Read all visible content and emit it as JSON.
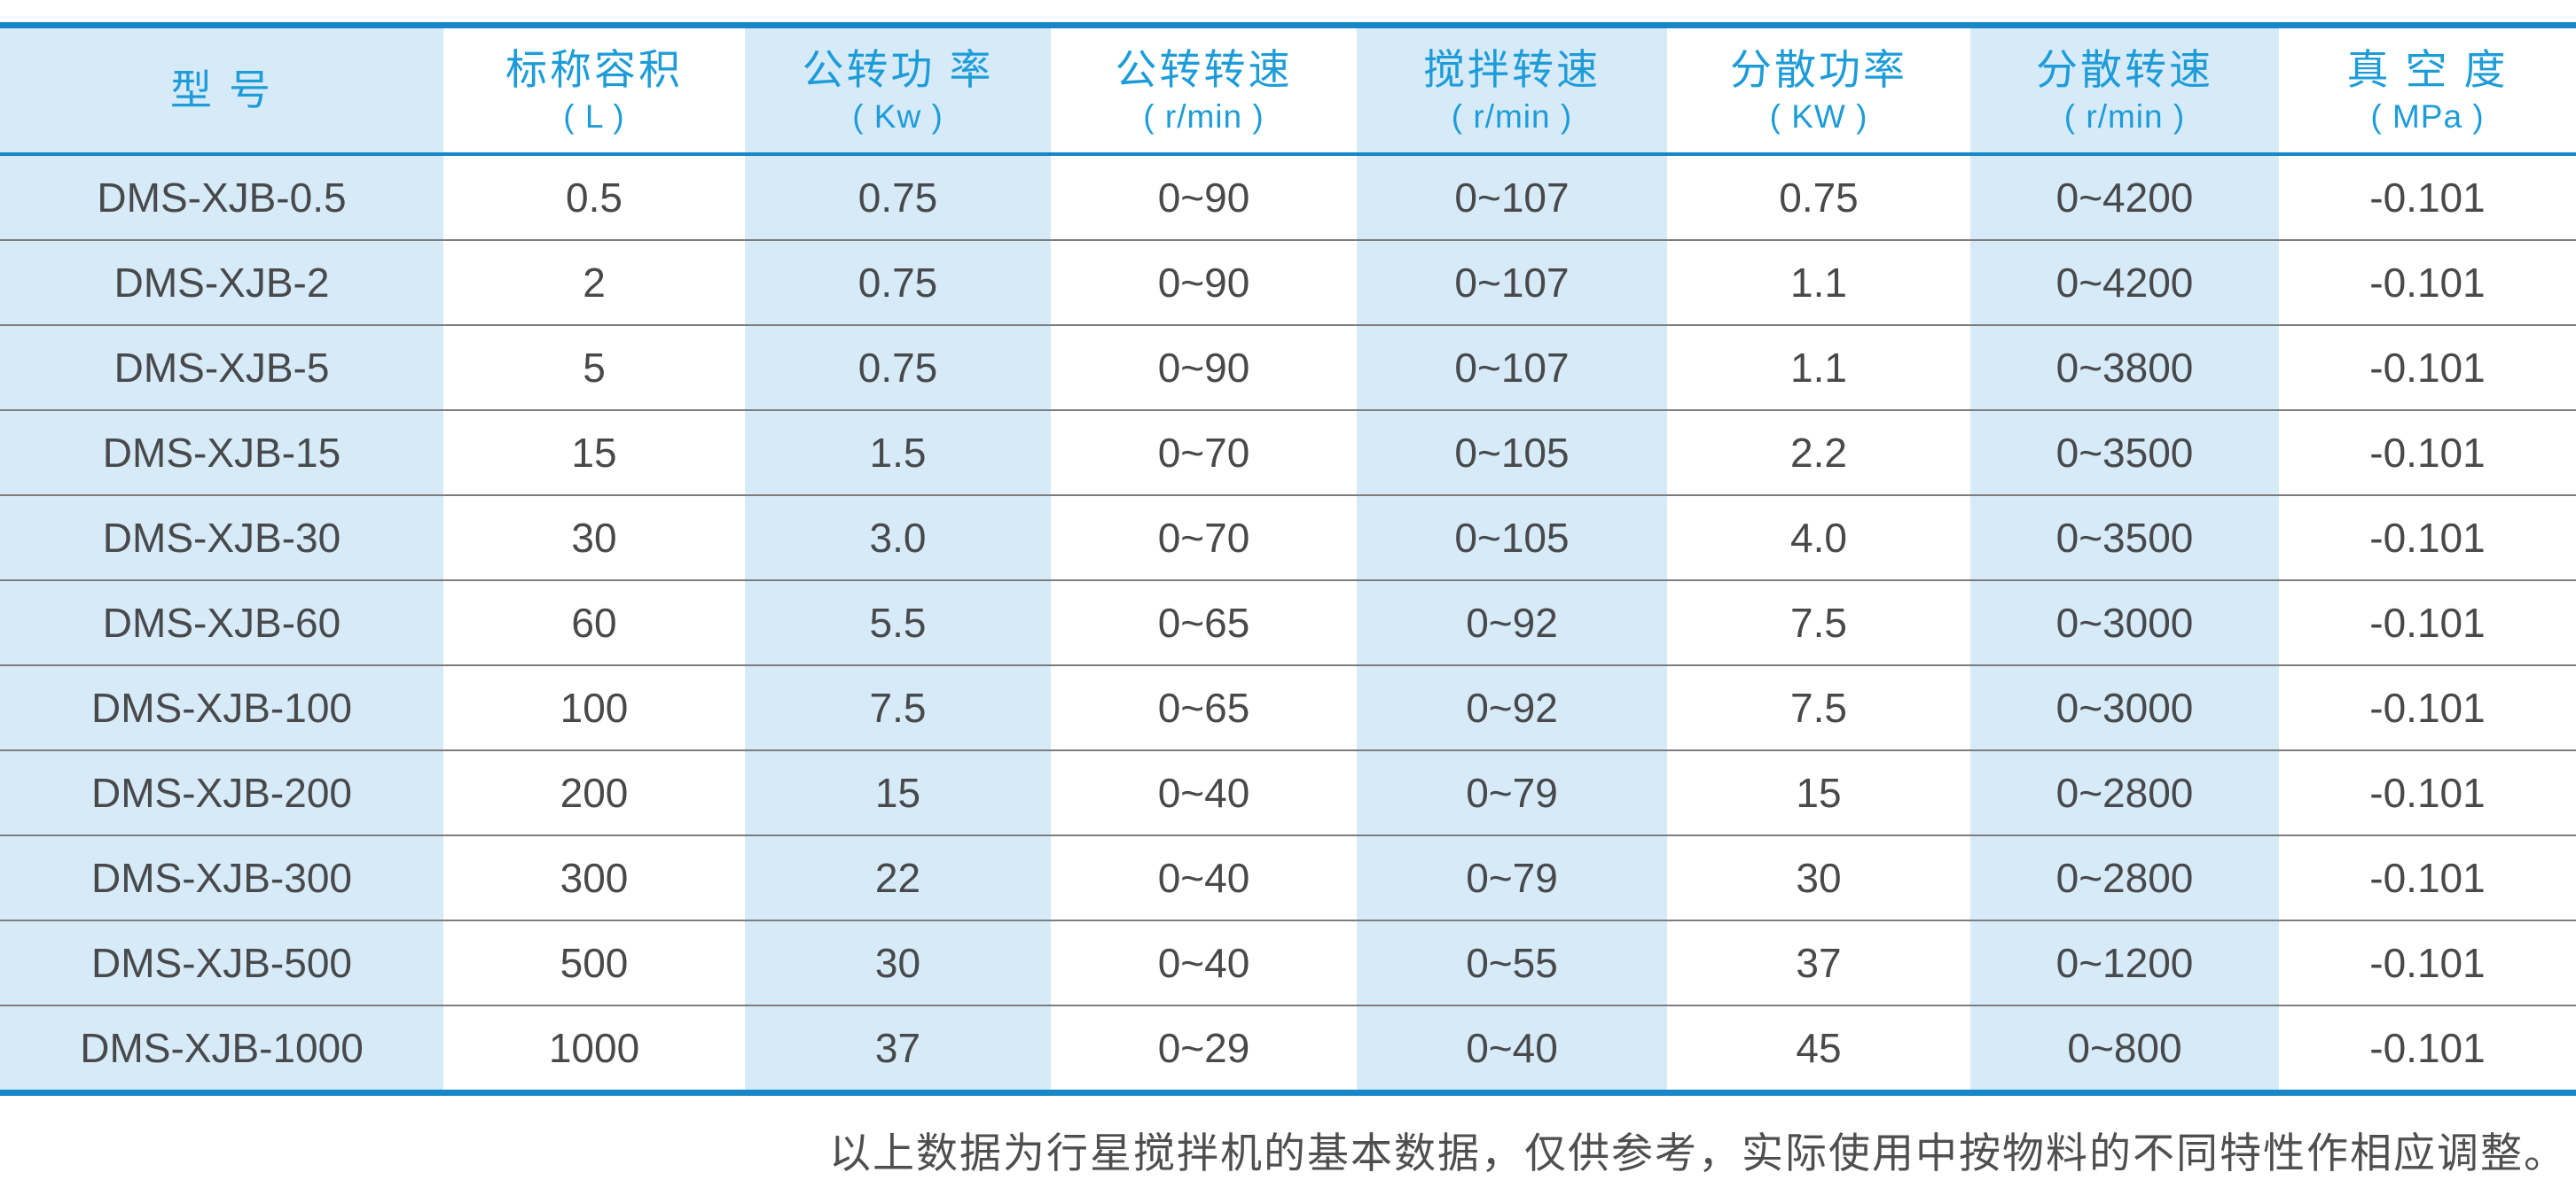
{
  "table": {
    "columns": [
      {
        "key": "model",
        "title": "型  号",
        "unit": ""
      },
      {
        "key": "nominal-capacity",
        "title": "标称容积",
        "unit": "( L )"
      },
      {
        "key": "revolution-power",
        "title": "公转功 率",
        "unit": "( Kw )"
      },
      {
        "key": "revolution-speed",
        "title": "公转转速",
        "unit": "( r/min )"
      },
      {
        "key": "stirring-speed",
        "title": "搅拌转速",
        "unit": "( r/min )"
      },
      {
        "key": "dispersion-power",
        "title": "分散功率",
        "unit": "( KW )"
      },
      {
        "key": "dispersion-speed",
        "title": "分散转速",
        "unit": "( r/min )"
      },
      {
        "key": "vacuum-degree",
        "title": "真 空 度",
        "unit": "( MPa )"
      }
    ],
    "rows": [
      [
        "DMS-XJB-0.5",
        "0.5",
        "0.75",
        "0~90",
        "0~107",
        "0.75",
        "0~4200",
        "-0.101"
      ],
      [
        "DMS-XJB-2",
        "2",
        "0.75",
        "0~90",
        "0~107",
        "1.1",
        "0~4200",
        "-0.101"
      ],
      [
        "DMS-XJB-5",
        "5",
        "0.75",
        "0~90",
        "0~107",
        "1.1",
        "0~3800",
        "-0.101"
      ],
      [
        "DMS-XJB-15",
        "15",
        "1.5",
        "0~70",
        "0~105",
        "2.2",
        "0~3500",
        "-0.101"
      ],
      [
        "DMS-XJB-30",
        "30",
        "3.0",
        "0~70",
        "0~105",
        "4.0",
        "0~3500",
        "-0.101"
      ],
      [
        "DMS-XJB-60",
        "60",
        "5.5",
        "0~65",
        "0~92",
        "7.5",
        "0~3000",
        "-0.101"
      ],
      [
        "DMS-XJB-100",
        "100",
        "7.5",
        "0~65",
        "0~92",
        "7.5",
        "0~3000",
        "-0.101"
      ],
      [
        "DMS-XJB-200",
        "200",
        "15",
        "0~40",
        "0~79",
        "15",
        "0~2800",
        "-0.101"
      ],
      [
        "DMS-XJB-300",
        "300",
        "22",
        "0~40",
        "0~79",
        "30",
        "0~2800",
        "-0.101"
      ],
      [
        "DMS-XJB-500",
        "500",
        "30",
        "0~40",
        "0~55",
        "37",
        "0~1200",
        "-0.101"
      ],
      [
        "DMS-XJB-1000",
        "1000",
        "37",
        "0~29",
        "0~40",
        "45",
        "0~800",
        "-0.101"
      ]
    ]
  },
  "footnote": "以上数据为行星搅拌机的基本数据，仅供参考，实际使用中按物料的不同特性作相应调整。",
  "colors": {
    "accent_line": "#1787C9",
    "accent_text": "#1E9CD8",
    "band": "#D6EAF8",
    "cell_text": "#48494B",
    "separator": "#7D7D7D",
    "footnote_text": "#4F4F51"
  }
}
